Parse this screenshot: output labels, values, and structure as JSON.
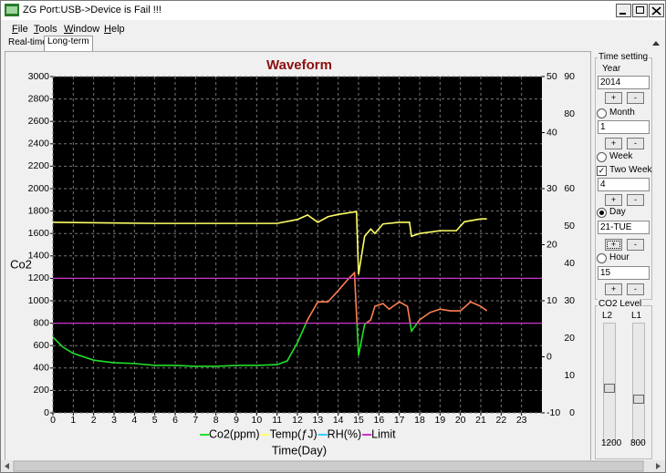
{
  "window": {
    "title": "ZG Port:USB->Device is Fail !!!",
    "menu": [
      "File",
      "Tools",
      "Window",
      "Help"
    ],
    "tabs": [
      "Real-time",
      "Long-term"
    ]
  },
  "chart_data": {
    "type": "line",
    "title": "Waveform",
    "y_label": "Co2",
    "x_label": "Time(Day)",
    "xlim": [
      0,
      24
    ],
    "xticks": [
      0,
      1,
      2,
      3,
      4,
      5,
      6,
      7,
      8,
      9,
      10,
      11,
      12,
      13,
      14,
      15,
      16,
      17,
      18,
      19,
      20,
      21,
      22,
      23
    ],
    "ylim": [
      0,
      3000
    ],
    "yticks": [
      0,
      200,
      400,
      600,
      800,
      1000,
      1200,
      1400,
      1600,
      1800,
      2000,
      2200,
      2400,
      2600,
      2800,
      3000
    ],
    "y2lim": [
      -10,
      50
    ],
    "y2ticks": [
      -10,
      0,
      10,
      20,
      30,
      40,
      50
    ],
    "y3lim": [
      0,
      90
    ],
    "y3ticks": [
      0,
      10,
      20,
      30,
      40,
      50,
      60,
      80,
      90
    ],
    "grid": true,
    "background": "#000000",
    "series": [
      {
        "name": "Co2(ppm)",
        "color": "#22e02a",
        "color_above_limit": "#ff7f50",
        "x": [
          0,
          0.5,
          1,
          2,
          3,
          4,
          5,
          6,
          7,
          8,
          9,
          10,
          11,
          11.5,
          12,
          12.5,
          13,
          13.5,
          14,
          14.5,
          14.8,
          15,
          15.3,
          15.6,
          15.8,
          16.2,
          16.5,
          17,
          17.4,
          17.6,
          18,
          18.5,
          19,
          19.5,
          20,
          20.5,
          21,
          21.3
        ],
        "values": [
          675,
          585,
          530,
          470,
          447,
          440,
          423,
          423,
          415,
          415,
          423,
          423,
          430,
          463,
          626,
          830,
          990,
          990,
          1090,
          1195,
          1250,
          512,
          790,
          830,
          950,
          975,
          925,
          990,
          950,
          730,
          830,
          895,
          925,
          910,
          910,
          990,
          950,
          910
        ]
      },
      {
        "name": "Temp(ƒJ)",
        "color": "#ffff66",
        "axis": "y2",
        "x": [
          0,
          5,
          11,
          12,
          12.5,
          13,
          13.5,
          14,
          14.9,
          15,
          15.3,
          15.6,
          15.8,
          16.2,
          17,
          17.5,
          17.6,
          18,
          19,
          19.8,
          20.2,
          21,
          21.3
        ],
        "values": [
          24.0,
          23.8,
          23.8,
          24.5,
          25.3,
          24.0,
          25.0,
          25.4,
          25.9,
          14.7,
          21.5,
          22.8,
          22.0,
          23.7,
          24.0,
          24.0,
          21.5,
          22.0,
          22.5,
          22.5,
          24.1,
          24.6,
          24.6
        ]
      },
      {
        "name": "RH(%)",
        "color": "#33ccff",
        "axis": "y3"
      },
      {
        "name": "Limit",
        "color": "#cc33cc",
        "values": [
          800,
          1200
        ]
      }
    ]
  },
  "panel": {
    "time_title": "Time setting",
    "buttons": [
      "+",
      "-"
    ],
    "year": {
      "label": "Year",
      "value": "2014"
    },
    "month": {
      "label": "Month",
      "value": "1"
    },
    "week": {
      "label": "Week"
    },
    "two_week": {
      "label": "Two Week",
      "value": "4"
    },
    "day": {
      "label": "Day",
      "value": "21-TUE"
    },
    "hour": {
      "label": "Hour",
      "value": "15"
    },
    "level_title": "CO2 Level",
    "sliders": [
      {
        "label": "L2",
        "value": "1200"
      },
      {
        "label": "L1",
        "value": "800"
      }
    ]
  }
}
